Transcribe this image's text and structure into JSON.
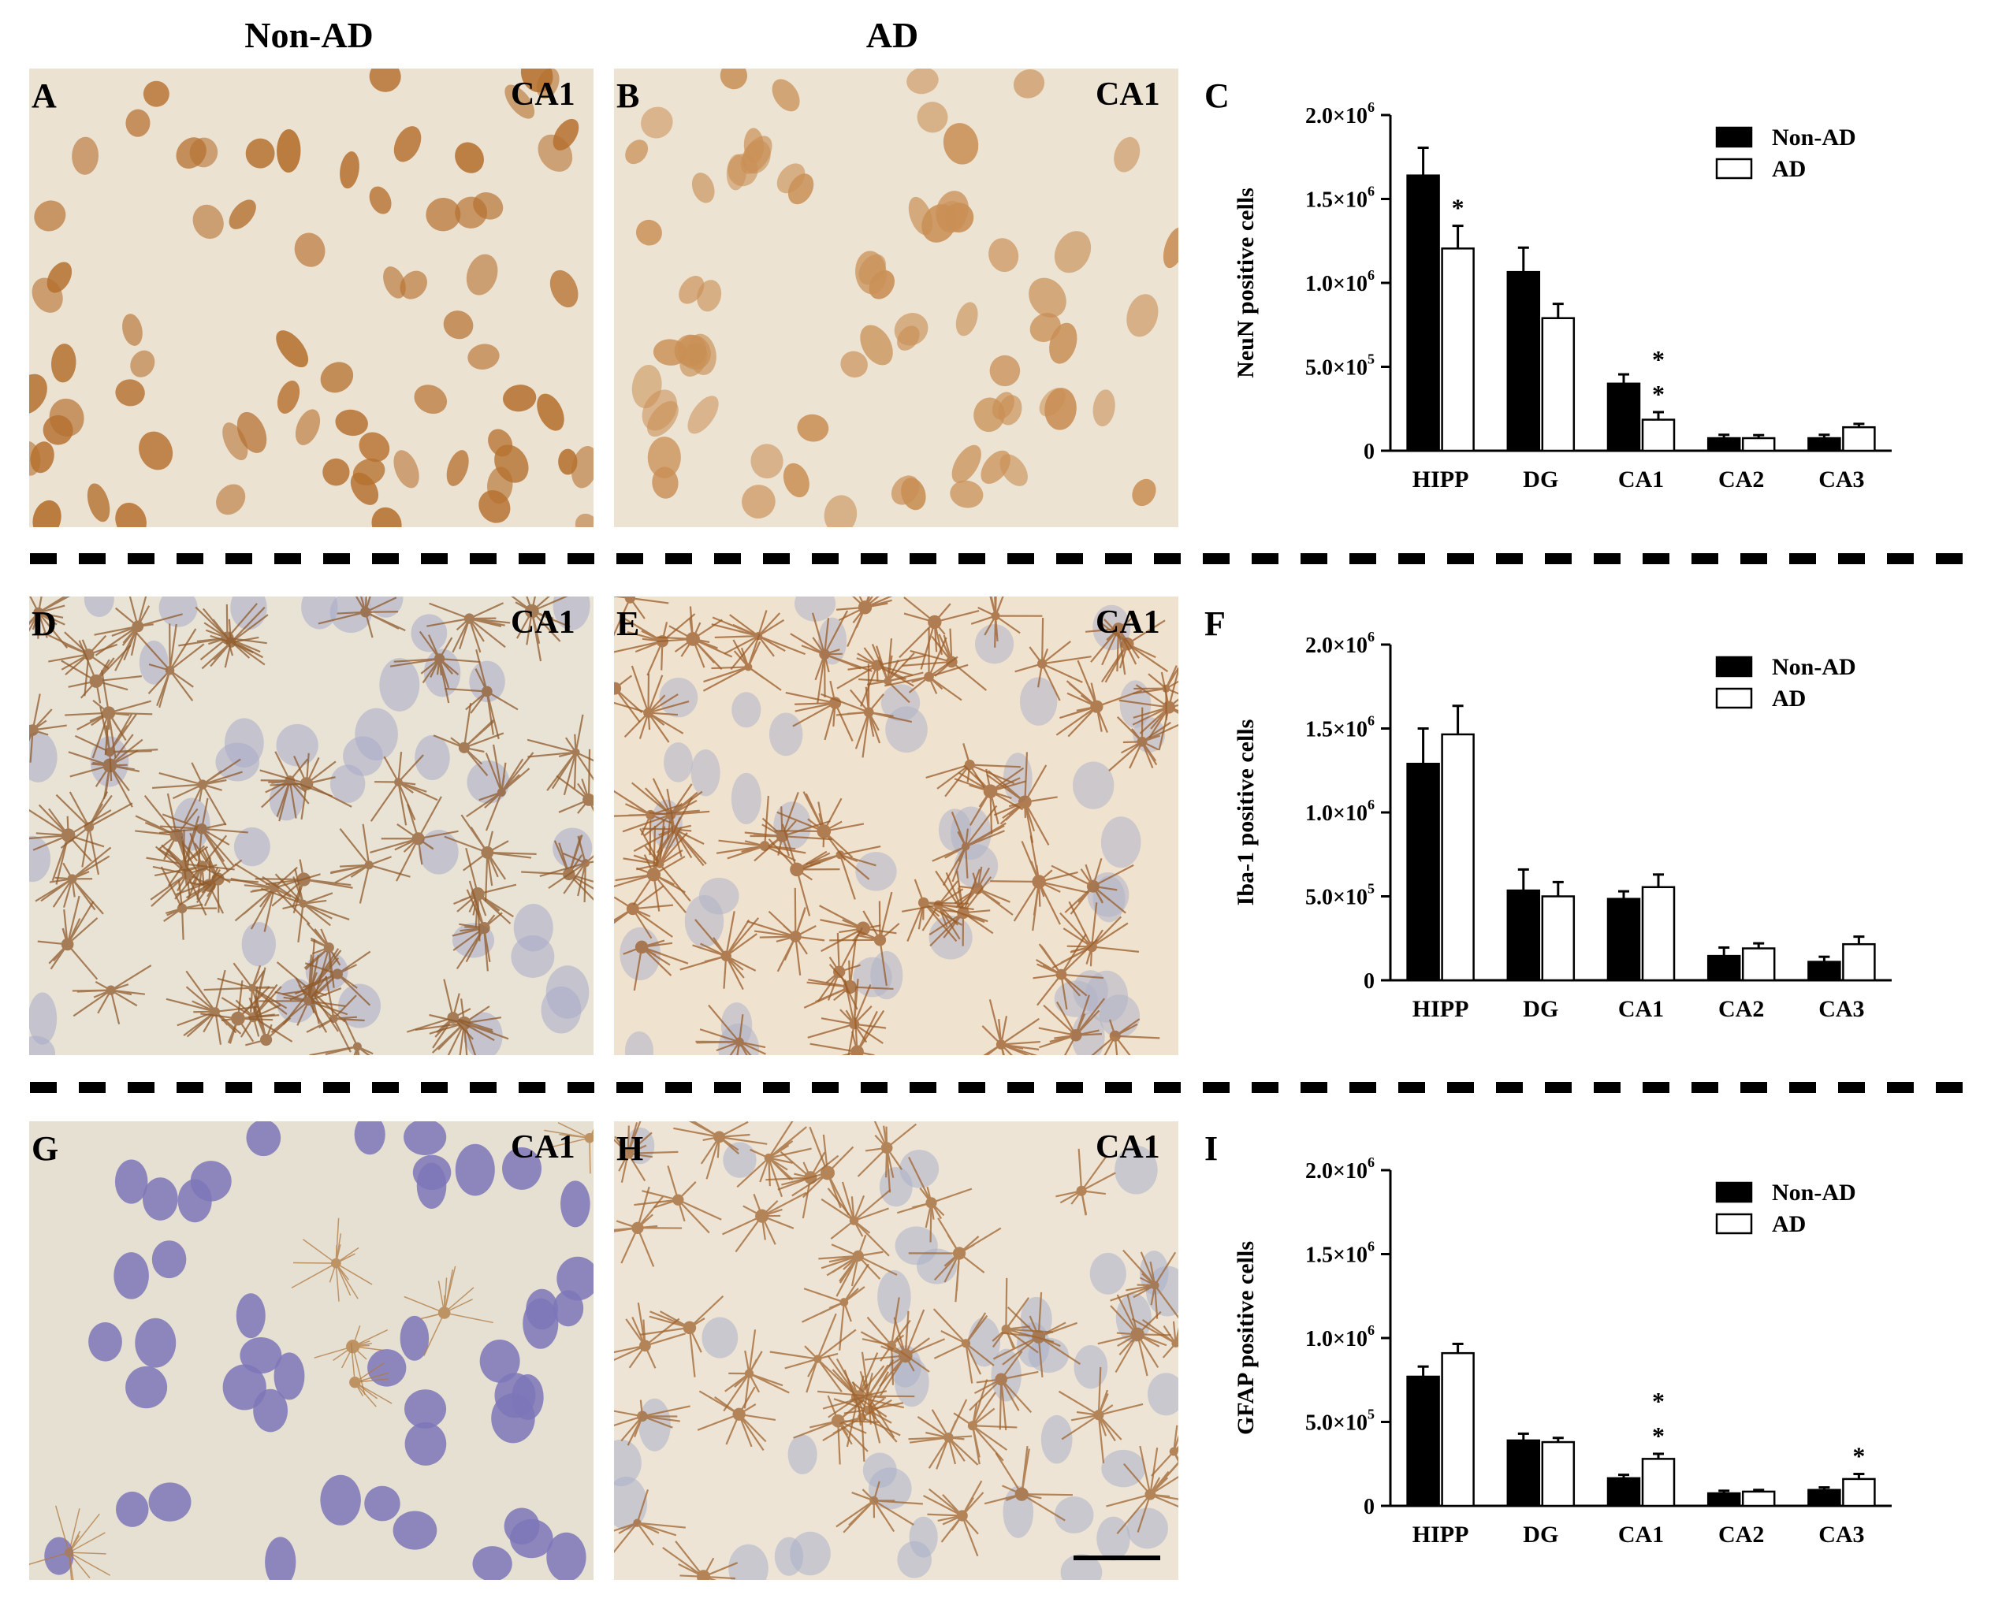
{
  "column_headers": {
    "left": "Non-AD",
    "right": "AD"
  },
  "micrographs": [
    {
      "letter": "A",
      "region": "CA1",
      "stain": "neun",
      "bg": "#ece2d2",
      "cell": "#b5702f"
    },
    {
      "letter": "B",
      "region": "CA1",
      "stain": "neun",
      "bg": "#ece3d3",
      "cell": "#c98f55"
    },
    {
      "letter": "D",
      "region": "CA1",
      "stain": "iba1",
      "bg": "#e9e3d6",
      "cell": "#8f5a2a",
      "nucleus": "#a7abc9"
    },
    {
      "letter": "E",
      "region": "CA1",
      "stain": "iba1",
      "bg": "#efe2cf",
      "cell": "#9a5c27",
      "nucleus": "#b0b2c9"
    },
    {
      "letter": "G",
      "region": "CA1",
      "stain": "gfap-sparse",
      "bg": "#e6e0d3",
      "cell": "#b07a40",
      "nucleus": "#7c76b8"
    },
    {
      "letter": "H",
      "region": "CA1",
      "stain": "gfap",
      "bg": "#ede4d6",
      "cell": "#a0652f",
      "nucleus": "#aab0c8"
    }
  ],
  "colors": {
    "non_ad": "#000000",
    "ad": "#ffffff"
  },
  "chart_data": [
    {
      "letter": "C",
      "type": "bar",
      "ylabel": "NeuN positive cells",
      "categories": [
        "HIPP",
        "DG",
        "CA1",
        "CA2",
        "CA3"
      ],
      "ylim": [
        0,
        2000000
      ],
      "yticks": [
        {
          "value": 0,
          "mant": "0",
          "exp": ""
        },
        {
          "value": 500000,
          "mant": "5.0×10",
          "exp": "5"
        },
        {
          "value": 1000000,
          "mant": "1.0×10",
          "exp": "6"
        },
        {
          "value": 1500000,
          "mant": "1.5×10",
          "exp": "6"
        },
        {
          "value": 2000000,
          "mant": "2.0×10",
          "exp": "6"
        }
      ],
      "legend": [
        "Non-AD",
        "AD"
      ],
      "legend_position": "top-right",
      "series": [
        {
          "name": "Non-AD",
          "values": [
            1640000,
            1065000,
            400000,
            75000,
            75000
          ],
          "errors": [
            165000,
            145000,
            55000,
            20000,
            20000
          ]
        },
        {
          "name": "AD",
          "values": [
            1205000,
            790000,
            185000,
            75000,
            140000
          ],
          "errors": [
            135000,
            85000,
            45000,
            18000,
            20000
          ]
        }
      ],
      "annotations": [
        {
          "series": 1,
          "category": 0,
          "text": "*"
        },
        {
          "series": 1,
          "category": 2,
          "text": "*"
        },
        {
          "series": 1,
          "category": 2,
          "text": "*"
        }
      ]
    },
    {
      "letter": "F",
      "type": "bar",
      "ylabel": "Iba-1 positive cells",
      "categories": [
        "HIPP",
        "DG",
        "CA1",
        "CA2",
        "CA3"
      ],
      "ylim": [
        0,
        2000000
      ],
      "yticks": [
        {
          "value": 0,
          "mant": "0",
          "exp": ""
        },
        {
          "value": 500000,
          "mant": "5.0×10",
          "exp": "5"
        },
        {
          "value": 1000000,
          "mant": "1.0×10",
          "exp": "6"
        },
        {
          "value": 1500000,
          "mant": "1.5×10",
          "exp": "6"
        },
        {
          "value": 2000000,
          "mant": "2.0×10",
          "exp": "6"
        }
      ],
      "legend": [
        "Non-AD",
        "AD"
      ],
      "legend_position": "top-right",
      "series": [
        {
          "name": "Non-AD",
          "values": [
            1290000,
            535000,
            485000,
            145000,
            110000
          ],
          "errors": [
            210000,
            125000,
            45000,
            50000,
            30000
          ]
        },
        {
          "name": "AD",
          "values": [
            1465000,
            500000,
            555000,
            190000,
            215000
          ],
          "errors": [
            170000,
            85000,
            75000,
            30000,
            45000
          ]
        }
      ],
      "annotations": []
    },
    {
      "letter": "I",
      "type": "bar",
      "ylabel": "GFAP positive cells",
      "categories": [
        "HIPP",
        "DG",
        "CA1",
        "CA2",
        "CA3"
      ],
      "ylim": [
        0,
        2000000
      ],
      "yticks": [
        {
          "value": 0,
          "mant": "0",
          "exp": ""
        },
        {
          "value": 500000,
          "mant": "5.0×10",
          "exp": "5"
        },
        {
          "value": 1000000,
          "mant": "1.0×10",
          "exp": "6"
        },
        {
          "value": 1500000,
          "mant": "1.5×10",
          "exp": "6"
        },
        {
          "value": 2000000,
          "mant": "2.0×10",
          "exp": "6"
        }
      ],
      "legend": [
        "Non-AD",
        "AD"
      ],
      "legend_position": "top-right",
      "series": [
        {
          "name": "Non-AD",
          "values": [
            770000,
            390000,
            165000,
            75000,
            95000
          ],
          "errors": [
            60000,
            40000,
            20000,
            15000,
            15000
          ]
        },
        {
          "name": "AD",
          "values": [
            910000,
            380000,
            280000,
            85000,
            160000
          ],
          "errors": [
            55000,
            25000,
            30000,
            10000,
            30000
          ]
        }
      ],
      "annotations": [
        {
          "series": 1,
          "category": 2,
          "text": "*"
        },
        {
          "series": 1,
          "category": 2,
          "text": "*"
        },
        {
          "series": 1,
          "category": 4,
          "text": "*"
        }
      ]
    }
  ]
}
